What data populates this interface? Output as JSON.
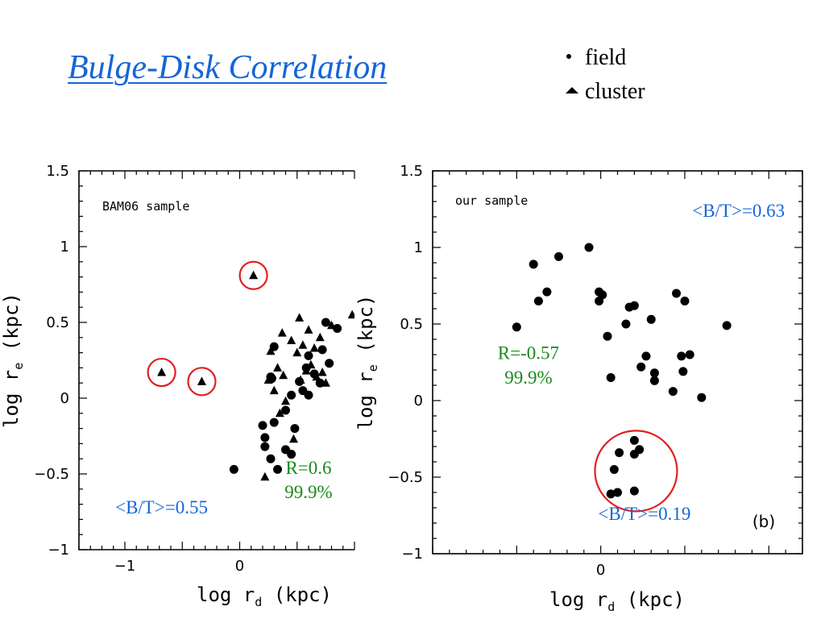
{
  "title": "Bulge-Disk Correlation",
  "legend": [
    {
      "symbol": "circle",
      "label": "field"
    },
    {
      "symbol": "triangle",
      "label": "cluster"
    }
  ],
  "chart_data": [
    {
      "type": "scatter",
      "panel_label": "BAM06 sample",
      "xlabel": "log r",
      "xlabel_sub": "d",
      "xlabel_unit": " (kpc)",
      "ylabel": "log r",
      "ylabel_sub": "e",
      "ylabel_unit": " (kpc)",
      "xlim": [
        -1.4,
        1.0
      ],
      "ylim": [
        -1.0,
        1.5
      ],
      "xticks": [
        -1,
        0
      ],
      "xtick_labels": [
        "−1",
        "0"
      ],
      "yticks": [
        -1,
        -0.5,
        0,
        0.5,
        1,
        1.5
      ],
      "ytick_labels": [
        "−1",
        "−0.5",
        "0",
        "0.5",
        "1",
        "1.5"
      ],
      "annotations": [
        {
          "text": "R=0.6",
          "x": 0.6,
          "y": -0.5,
          "color": "#1a8a1a"
        },
        {
          "text": "99.9%",
          "x": 0.6,
          "y": -0.66,
          "color": "#1a8a1a"
        },
        {
          "text": "<B/T>=0.55",
          "x": -0.68,
          "y": -0.76,
          "color": "#1565d8"
        }
      ],
      "highlights": [
        {
          "x": 0.12,
          "y": 0.81
        },
        {
          "x": -0.68,
          "y": 0.17
        },
        {
          "x": -0.33,
          "y": 0.11
        }
      ],
      "series": [
        {
          "name": "field",
          "marker": "circle",
          "points": [
            [
              -0.05,
              -0.47
            ],
            [
              0.2,
              -0.18
            ],
            [
              0.22,
              -0.26
            ],
            [
              0.22,
              -0.32
            ],
            [
              0.27,
              -0.4
            ],
            [
              0.33,
              -0.47
            ],
            [
              0.4,
              -0.34
            ],
            [
              0.45,
              -0.37
            ],
            [
              0.27,
              0.14
            ],
            [
              0.28,
              0.13
            ],
            [
              0.3,
              0.34
            ],
            [
              0.3,
              -0.16
            ],
            [
              0.4,
              -0.08
            ],
            [
              0.45,
              0.02
            ],
            [
              0.48,
              -0.2
            ],
            [
              0.52,
              0.11
            ],
            [
              0.55,
              0.05
            ],
            [
              0.58,
              0.2
            ],
            [
              0.6,
              0.28
            ],
            [
              0.6,
              0.02
            ],
            [
              0.65,
              0.16
            ],
            [
              0.7,
              0.1
            ],
            [
              0.72,
              0.32
            ],
            [
              0.75,
              0.5
            ],
            [
              0.78,
              0.23
            ],
            [
              0.85,
              0.46
            ]
          ]
        },
        {
          "name": "cluster",
          "marker": "triangle",
          "points": [
            [
              0.12,
              0.81
            ],
            [
              -0.68,
              0.17
            ],
            [
              -0.33,
              0.11
            ],
            [
              0.22,
              -0.52
            ],
            [
              0.25,
              0.12
            ],
            [
              0.27,
              0.31
            ],
            [
              0.3,
              0.05
            ],
            [
              0.33,
              0.2
            ],
            [
              0.35,
              -0.1
            ],
            [
              0.37,
              0.43
            ],
            [
              0.4,
              -0.02
            ],
            [
              0.45,
              0.38
            ],
            [
              0.5,
              0.3
            ],
            [
              0.52,
              0.53
            ],
            [
              0.53,
              0.12
            ],
            [
              0.55,
              0.35
            ],
            [
              0.58,
              0.18
            ],
            [
              0.6,
              0.45
            ],
            [
              0.62,
              0.22
            ],
            [
              0.65,
              0.33
            ],
            [
              0.67,
              0.14
            ],
            [
              0.7,
              0.4
            ],
            [
              0.72,
              0.17
            ],
            [
              0.75,
              0.1
            ],
            [
              0.8,
              0.48
            ],
            [
              0.98,
              0.55
            ],
            [
              0.38,
              0.15
            ],
            [
              0.47,
              -0.27
            ]
          ]
        }
      ]
    },
    {
      "type": "scatter",
      "panel_label": "our sample",
      "corner_label": "(b)",
      "xlabel": "log r",
      "xlabel_sub": "d",
      "xlabel_unit": " (kpc)",
      "ylabel": "log r",
      "ylabel_sub": "e",
      "ylabel_unit": " (kpc)",
      "xlim": [
        -1.0,
        1.2
      ],
      "ylim": [
        -1.0,
        1.5
      ],
      "xticks": [
        0
      ],
      "xtick_labels": [
        "0"
      ],
      "yticks": [
        -1,
        -0.5,
        0,
        0.5,
        1,
        1.5
      ],
      "ytick_labels": [
        "−1",
        "−0.5",
        "0",
        "0.5",
        "1",
        "1.5"
      ],
      "annotations": [
        {
          "text": "<B/T>=0.63",
          "x": 0.82,
          "y": 1.2,
          "color": "#1565d8"
        },
        {
          "text": "R=-0.57",
          "x": -0.43,
          "y": 0.27,
          "color": "#1a8a1a"
        },
        {
          "text": "99.9%",
          "x": -0.43,
          "y": 0.11,
          "color": "#1a8a1a"
        },
        {
          "text": "<B/T>=0.19",
          "x": 0.26,
          "y": -0.78,
          "color": "#1565d8"
        }
      ],
      "highlights": [
        {
          "x": 0.21,
          "y": -0.46
        }
      ],
      "series": [
        {
          "name": "field",
          "marker": "circle",
          "points": [
            [
              -0.5,
              0.48
            ],
            [
              -0.37,
              0.65
            ],
            [
              -0.4,
              0.89
            ],
            [
              -0.32,
              0.71
            ],
            [
              -0.25,
              0.94
            ],
            [
              -0.07,
              1.0
            ],
            [
              -0.01,
              0.71
            ],
            [
              -0.01,
              0.65
            ],
            [
              0.01,
              0.69
            ],
            [
              0.04,
              0.42
            ],
            [
              0.06,
              0.15
            ],
            [
              0.15,
              0.5
            ],
            [
              0.17,
              0.61
            ],
            [
              0.2,
              0.62
            ],
            [
              0.24,
              0.22
            ],
            [
              0.27,
              0.29
            ],
            [
              0.3,
              0.53
            ],
            [
              0.32,
              0.18
            ],
            [
              0.32,
              0.13
            ],
            [
              0.43,
              0.06
            ],
            [
              0.45,
              0.7
            ],
            [
              0.48,
              0.29
            ],
            [
              0.49,
              0.19
            ],
            [
              0.5,
              0.65
            ],
            [
              0.53,
              0.3
            ],
            [
              0.6,
              0.02
            ],
            [
              0.75,
              0.49
            ],
            [
              0.11,
              -0.34
            ],
            [
              0.08,
              -0.45
            ],
            [
              0.06,
              -0.61
            ],
            [
              0.1,
              -0.6
            ],
            [
              0.2,
              -0.26
            ],
            [
              0.2,
              -0.35
            ],
            [
              0.23,
              -0.32
            ],
            [
              0.2,
              -0.59
            ]
          ]
        }
      ]
    }
  ]
}
